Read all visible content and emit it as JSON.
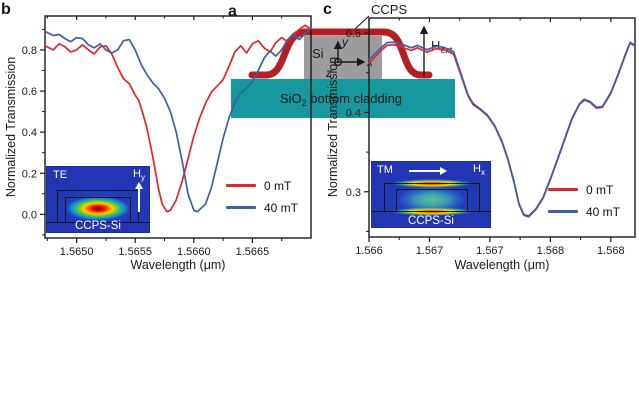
{
  "panel_a": {
    "label": "a",
    "ccps": "CCPS",
    "si": "Si",
    "sio2": {
      "pre": "SiO",
      "sub": "2",
      "post": " bottom cladding"
    },
    "hext": {
      "main": "H",
      "sub": "ext"
    },
    "axis_x": "x",
    "axis_y": "y",
    "axis_z": "z",
    "colors": {
      "ccps_red": "#b22025",
      "si_gray": "#9c9c9c",
      "sio2_teal": "#17989e",
      "ink": "#1a1a1a"
    }
  },
  "panel_b": {
    "label": "b",
    "inset": {
      "mode": "TE",
      "field_main": "H",
      "field_sub": "y",
      "caption": "CCPS-Si"
    }
  },
  "panel_c": {
    "label": "c",
    "inset": {
      "mode": "TM",
      "field_main": "H",
      "field_sub": "x",
      "caption": "CCPS-Si"
    }
  },
  "chart_data": [
    {
      "type": "line",
      "panel": "b",
      "xlabel": "Wavelength (μm)",
      "ylabel": "Normalized Transmission",
      "xlim": [
        1.56473,
        1.567
      ],
      "ylim": [
        -0.115,
        0.965
      ],
      "xticks": [
        1.565,
        1.5655,
        1.566,
        1.5665
      ],
      "xtick_labels": [
        "1.5650",
        "1.5655",
        "1.5660",
        "1.5665"
      ],
      "xminor": [
        1.56475,
        1.56525,
        1.56575,
        1.56625,
        1.56675
      ],
      "yticks": [
        0.0,
        0.2,
        0.4,
        0.6,
        0.8
      ],
      "ytick_labels": [
        "0.0",
        "0.2",
        "0.4",
        "0.6",
        "0.8"
      ],
      "yminor": [
        -0.1,
        0.1,
        0.3,
        0.5,
        0.7,
        0.9
      ],
      "grid": false,
      "legend_position": "lower right",
      "series": [
        {
          "name": "0 mT",
          "color": "#e0262e",
          "x": [
            1.56473,
            1.5648,
            1.56485,
            1.5649,
            1.56495,
            1.565,
            1.56505,
            1.5651,
            1.56515,
            1.5652,
            1.56525,
            1.5653,
            1.56535,
            1.5654,
            1.56545,
            1.5655,
            1.56553,
            1.56556,
            1.5656,
            1.56565,
            1.5657,
            1.56573,
            1.56577,
            1.5658,
            1.56585,
            1.5659,
            1.56595,
            1.566,
            1.56605,
            1.5661,
            1.56615,
            1.5662,
            1.56625,
            1.5663,
            1.56635,
            1.5664,
            1.56645,
            1.5665,
            1.56655,
            1.5666,
            1.56665,
            1.5667,
            1.56675,
            1.5668,
            1.56685,
            1.5669,
            1.56695,
            1.567
          ],
          "y": [
            0.82,
            0.8,
            0.83,
            0.815,
            0.79,
            0.8,
            0.825,
            0.8,
            0.78,
            0.815,
            0.82,
            0.78,
            0.715,
            0.66,
            0.635,
            0.58,
            0.555,
            0.5,
            0.42,
            0.28,
            0.12,
            0.05,
            0.013,
            0.02,
            0.07,
            0.16,
            0.27,
            0.38,
            0.47,
            0.54,
            0.595,
            0.625,
            0.655,
            0.72,
            0.79,
            0.82,
            0.785,
            0.83,
            0.845,
            0.81,
            0.79,
            0.835,
            0.86,
            0.84,
            0.875,
            0.9,
            0.92,
            0.9
          ]
        },
        {
          "name": "40 mT",
          "color": "#3c60a6",
          "x": [
            1.56473,
            1.5648,
            1.56485,
            1.5649,
            1.56495,
            1.565,
            1.56505,
            1.5651,
            1.56515,
            1.5652,
            1.56525,
            1.5653,
            1.56535,
            1.5654,
            1.56545,
            1.5655,
            1.56555,
            1.5656,
            1.56565,
            1.5657,
            1.56575,
            1.5658,
            1.56585,
            1.5659,
            1.56595,
            1.566,
            1.56603,
            1.5661,
            1.56615,
            1.5662,
            1.56625,
            1.5663,
            1.56635,
            1.5664,
            1.56645,
            1.5665,
            1.56655,
            1.5666,
            1.56665,
            1.5667,
            1.56675,
            1.5668,
            1.56685,
            1.5669,
            1.56695,
            1.567
          ],
          "y": [
            0.89,
            0.87,
            0.875,
            0.855,
            0.84,
            0.86,
            0.855,
            0.825,
            0.81,
            0.83,
            0.8,
            0.785,
            0.8,
            0.845,
            0.85,
            0.8,
            0.73,
            0.68,
            0.64,
            0.61,
            0.565,
            0.5,
            0.4,
            0.26,
            0.1,
            0.02,
            0.013,
            0.05,
            0.13,
            0.25,
            0.37,
            0.47,
            0.545,
            0.59,
            0.615,
            0.645,
            0.7,
            0.76,
            0.795,
            0.77,
            0.8,
            0.85,
            0.875,
            0.85,
            0.88,
            0.91
          ]
        }
      ]
    },
    {
      "type": "line",
      "panel": "c",
      "xlabel": "Wavelength (μm)",
      "ylabel": "Normalized Transmission",
      "xlim": [
        1.566,
        1.5682
      ],
      "ylim": [
        0.243,
        0.519
      ],
      "xticks": [
        1.566,
        1.5665,
        1.567,
        1.5675,
        1.568
      ],
      "xtick_labels": [
        "1.566",
        "1.567",
        "1.567",
        "1.568",
        "1.568"
      ],
      "xminor": [
        1.56625,
        1.56675,
        1.56725,
        1.56775
      ],
      "yticks": [
        0.3,
        0.4,
        0.5
      ],
      "ytick_labels": [
        "0.3",
        "0.4",
        "0.5"
      ],
      "yminor": [
        0.25,
        0.35,
        0.45
      ],
      "grid": false,
      "legend_position": "lower right",
      "series": [
        {
          "name": "0 mT",
          "color": "#e0262e",
          "x": [
            1.566,
            1.56605,
            1.5661,
            1.56615,
            1.5662,
            1.56628,
            1.56635,
            1.5664,
            1.56648,
            1.56656,
            1.56662,
            1.5667,
            1.56677,
            1.56682,
            1.56686,
            1.56692,
            1.56698,
            1.56704,
            1.5671,
            1.56715,
            1.5672,
            1.56724,
            1.56728,
            1.56732,
            1.56738,
            1.56744,
            1.5675,
            1.56756,
            1.56762,
            1.56768,
            1.56774,
            1.56778,
            1.56783,
            1.56788,
            1.56793,
            1.568,
            1.56806,
            1.56812,
            1.56816,
            1.5682
          ],
          "y": [
            0.462,
            0.47,
            0.478,
            0.4845,
            0.4855,
            0.482,
            0.478,
            0.4815,
            0.476,
            0.4805,
            0.479,
            0.4735,
            0.4425,
            0.4205,
            0.41,
            0.4035,
            0.3955,
            0.3825,
            0.3625,
            0.34,
            0.3115,
            0.2845,
            0.2705,
            0.2685,
            0.2775,
            0.292,
            0.3155,
            0.3405,
            0.3665,
            0.392,
            0.41,
            0.4155,
            0.4125,
            0.4055,
            0.4065,
            0.424,
            0.447,
            0.472,
            0.4875,
            0.4835
          ]
        },
        {
          "name": "40 mT",
          "color": "#3c60a6",
          "x": [
            1.566,
            1.56605,
            1.5661,
            1.56615,
            1.5662,
            1.56628,
            1.56635,
            1.5664,
            1.56648,
            1.56656,
            1.56662,
            1.5667,
            1.56677,
            1.56682,
            1.56686,
            1.56692,
            1.56698,
            1.56704,
            1.5671,
            1.56715,
            1.5672,
            1.56724,
            1.56728,
            1.56732,
            1.56738,
            1.56744,
            1.5675,
            1.56756,
            1.56762,
            1.56768,
            1.56774,
            1.56778,
            1.56783,
            1.56788,
            1.56793,
            1.568,
            1.56806,
            1.56812,
            1.56816,
            1.5682
          ],
          "y": [
            0.466,
            0.474,
            0.4815,
            0.488,
            0.4885,
            0.4855,
            0.4815,
            0.4845,
            0.479,
            0.4835,
            0.482,
            0.4765,
            0.4445,
            0.422,
            0.4115,
            0.4045,
            0.3965,
            0.3835,
            0.3635,
            0.341,
            0.3125,
            0.2855,
            0.2715,
            0.2695,
            0.2785,
            0.293,
            0.3165,
            0.3415,
            0.3675,
            0.393,
            0.411,
            0.4165,
            0.4135,
            0.4065,
            0.4075,
            0.425,
            0.448,
            0.473,
            0.4885,
            0.4845
          ]
        }
      ]
    }
  ]
}
